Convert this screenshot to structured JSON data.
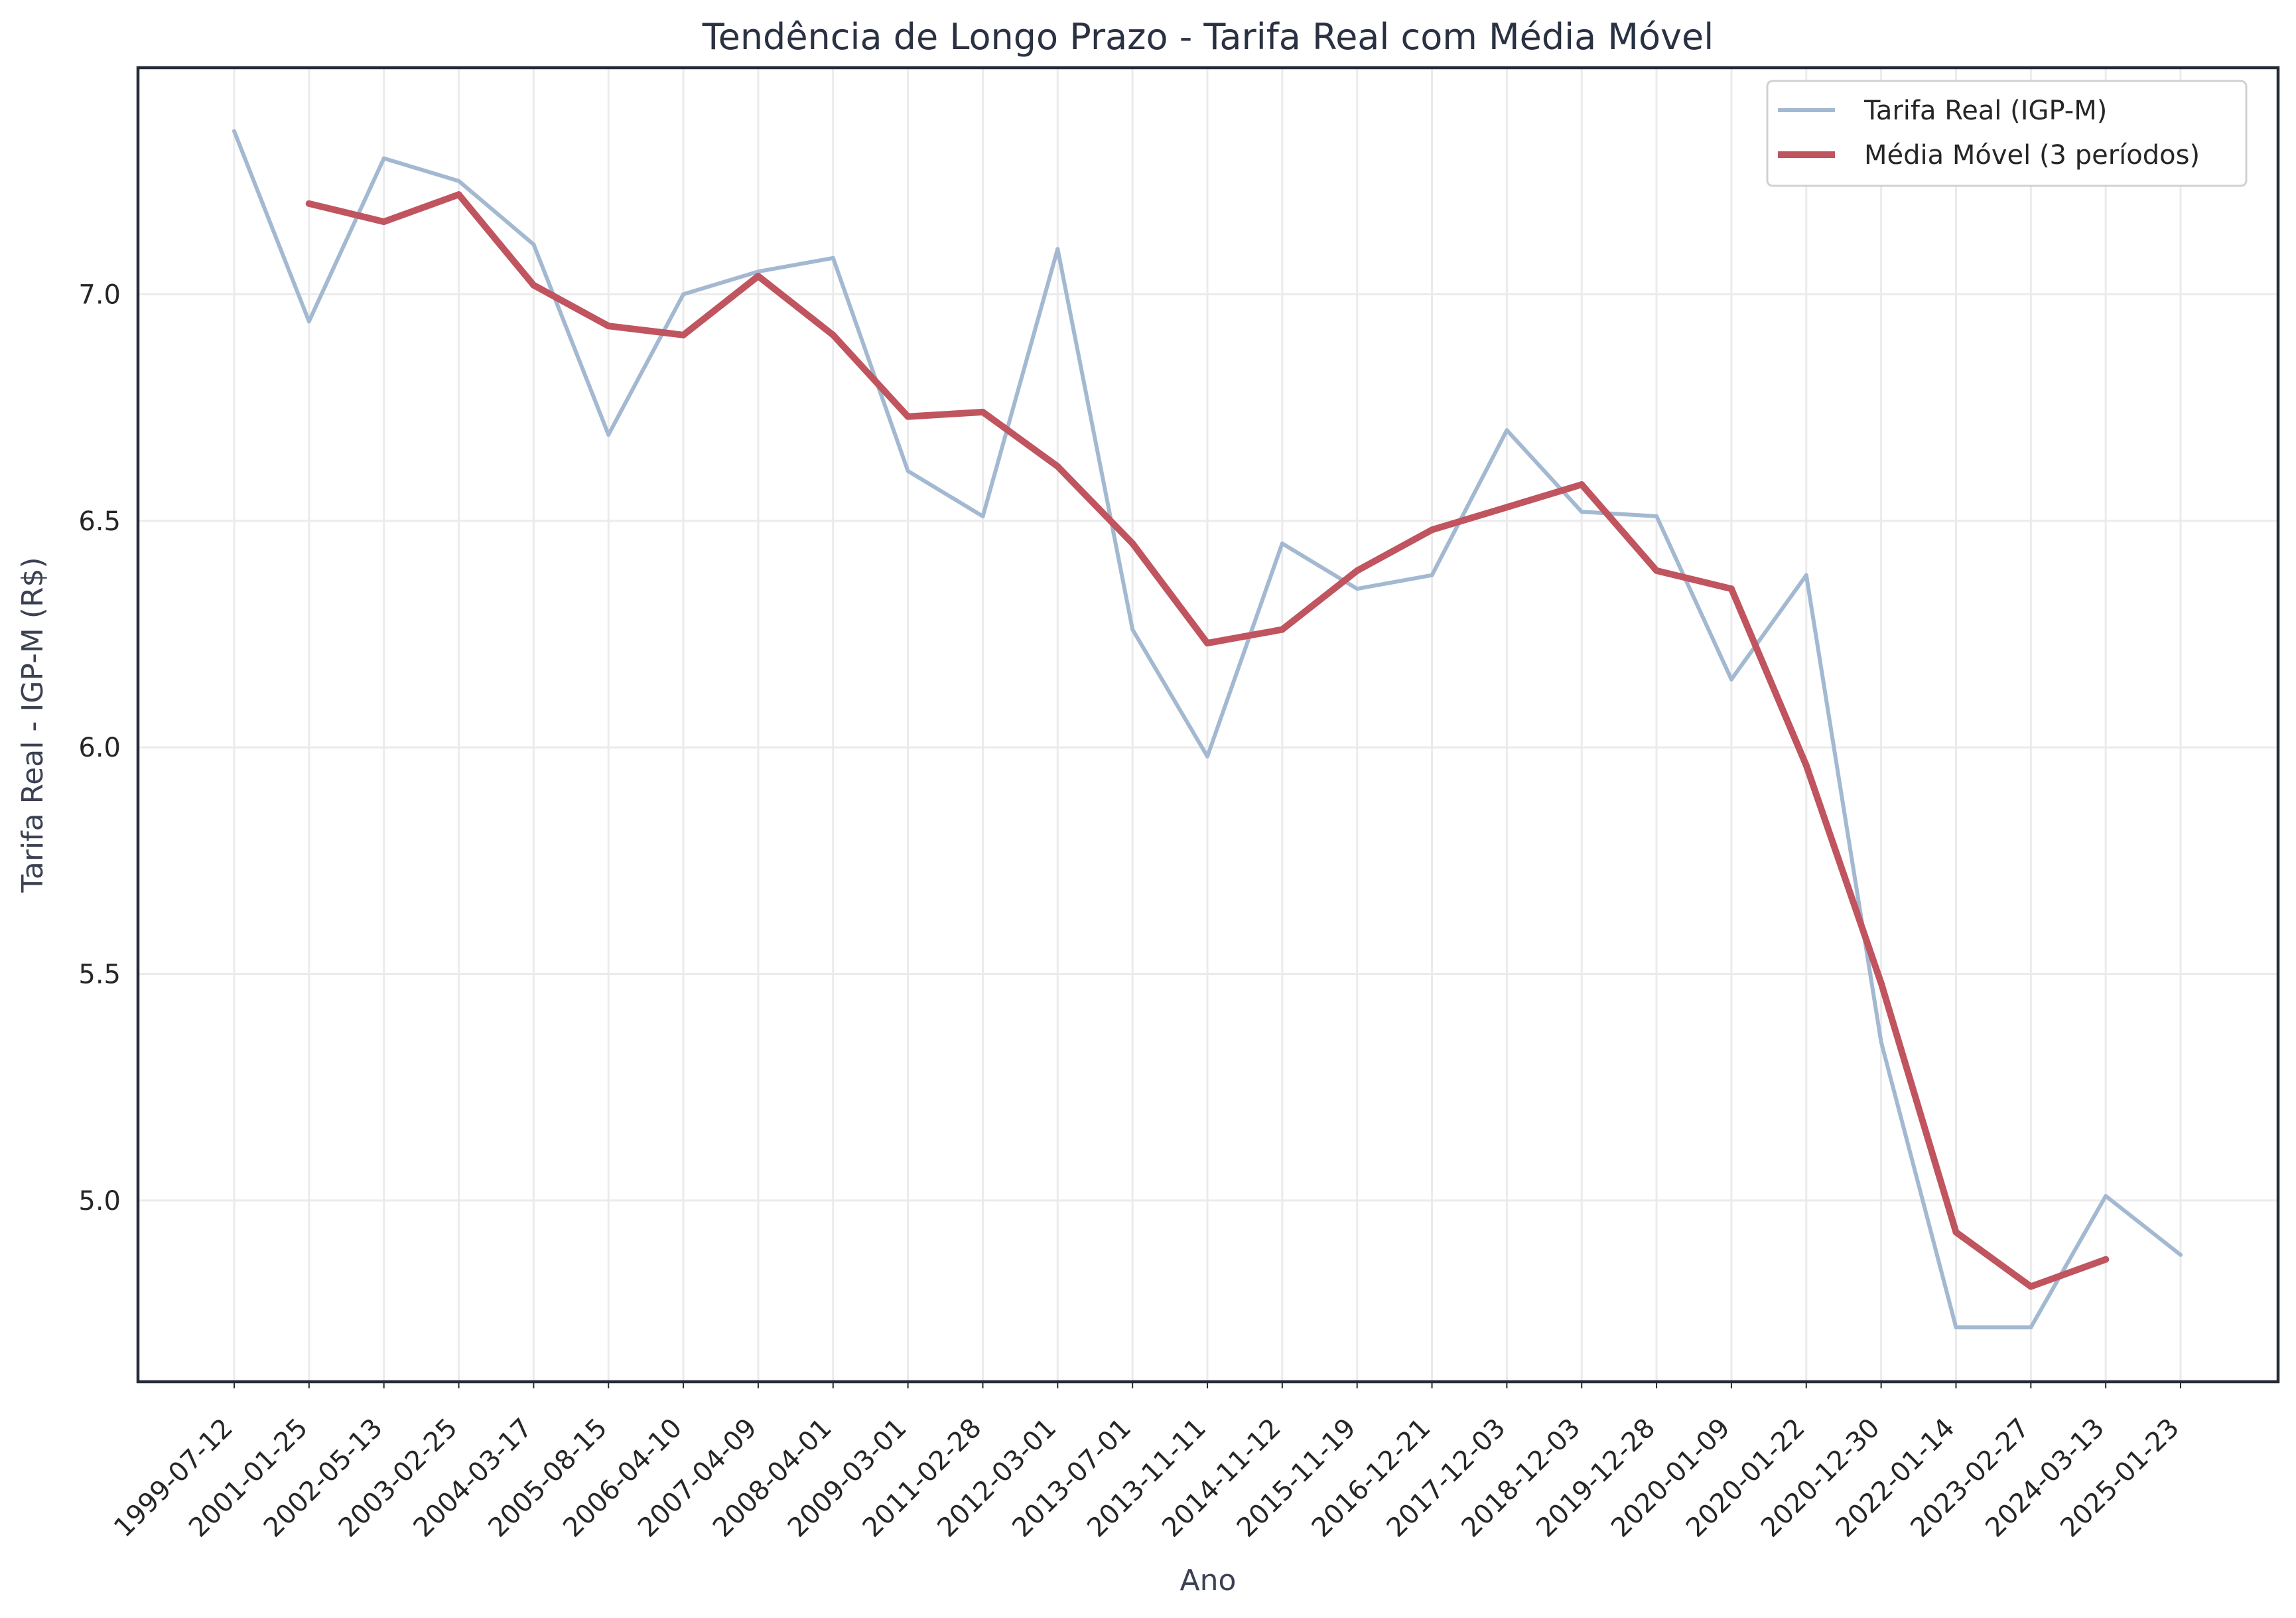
{
  "chart_data": {
    "type": "line",
    "title": "Tendência de Longo Prazo - Tarifa Real com Média Móvel",
    "xlabel": "Ano",
    "ylabel": "Tarifa Real - IGP-M (R$)",
    "ylim": [
      4.6,
      7.5
    ],
    "yticks": [
      "5.0",
      "5.5",
      "6.0",
      "6.5",
      "7.0"
    ],
    "grid": true,
    "legend_position": "top-right",
    "categories": [
      "1999-07-12",
      "2001-01-25",
      "2002-05-13",
      "2003-02-25",
      "2004-03-17",
      "2005-08-15",
      "2006-04-10",
      "2007-04-09",
      "2008-04-01",
      "2009-03-01",
      "2011-02-28",
      "2012-03-01",
      "2013-07-01",
      "2013-11-11",
      "2014-11-12",
      "2015-11-19",
      "2016-12-21",
      "2017-12-03",
      "2018-12-03",
      "2019-12-28",
      "2020-01-09",
      "2020-01-22",
      "2020-12-30",
      "2022-01-14",
      "2023-02-27",
      "2024-03-13",
      "2025-01-23"
    ],
    "series": [
      {
        "name": "Tarifa Real (IGP-M)",
        "color": "#a3b9d1",
        "values": [
          7.36,
          6.94,
          7.3,
          7.25,
          7.11,
          6.69,
          7.0,
          7.05,
          7.08,
          6.61,
          6.51,
          7.1,
          6.26,
          5.98,
          6.45,
          6.35,
          6.38,
          6.7,
          6.52,
          6.51,
          6.15,
          6.38,
          5.35,
          4.72,
          4.72,
          5.01,
          4.88
        ]
      },
      {
        "name": "Média Móvel (3 períodos)",
        "color": "#c0545f",
        "values": [
          null,
          7.2,
          7.16,
          7.22,
          7.02,
          6.93,
          6.91,
          7.04,
          6.91,
          6.73,
          6.74,
          6.62,
          6.45,
          6.23,
          6.26,
          6.39,
          6.48,
          6.53,
          6.58,
          6.39,
          6.35,
          5.96,
          5.48,
          4.93,
          4.81,
          4.87,
          null
        ]
      }
    ]
  }
}
